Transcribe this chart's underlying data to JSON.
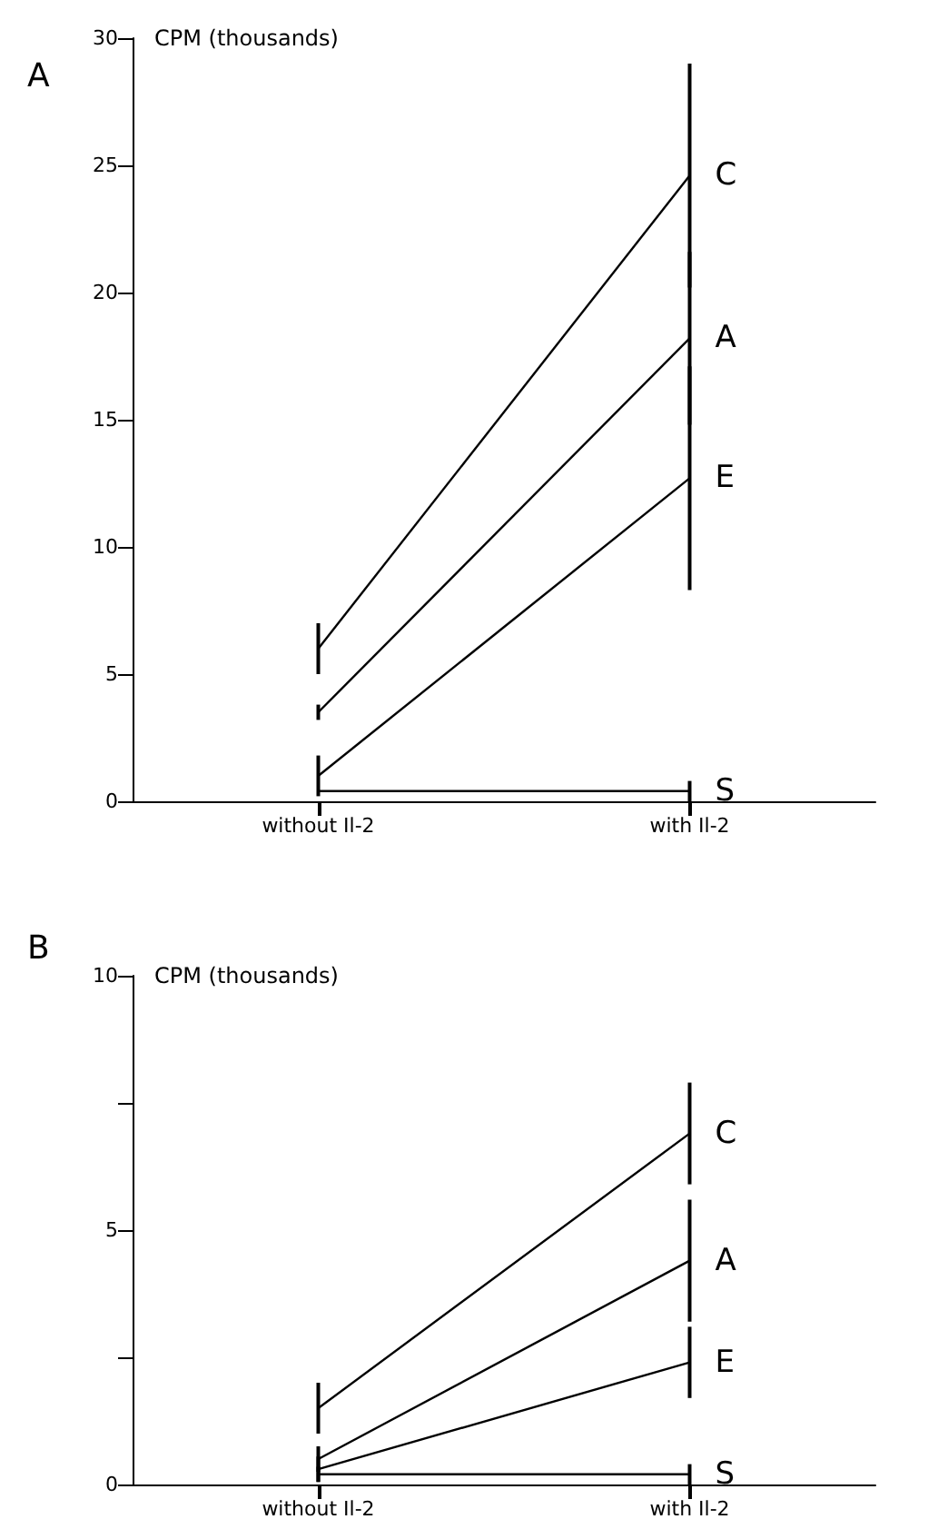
{
  "chart_data": [
    {
      "type": "line",
      "title": "A",
      "ylabel": "CPM (thousands)",
      "categories": [
        "without Il-2",
        "with Il-2"
      ],
      "ylim": [
        0,
        30
      ],
      "yticks": [
        0,
        5,
        10,
        15,
        20,
        25,
        30
      ],
      "marker": "none",
      "legend": "right",
      "grid": false,
      "series": [
        {
          "name": "C",
          "color": "#000000",
          "values": [
            6.0,
            24.6
          ],
          "errors": [
            1.0,
            4.4
          ]
        },
        {
          "name": "A",
          "color": "#000000",
          "values": [
            3.5,
            18.2
          ],
          "errors": [
            0.3,
            3.4
          ]
        },
        {
          "name": "E",
          "color": "#000000",
          "values": [
            1.0,
            12.7
          ],
          "errors": [
            0.8,
            4.4
          ]
        },
        {
          "name": "S",
          "color": "#000000",
          "values": [
            0.4,
            0.4
          ],
          "errors": [
            null,
            0.4
          ]
        }
      ]
    },
    {
      "type": "line",
      "title": "B",
      "ylabel": "CPM (thousands)",
      "categories": [
        "without Il-2",
        "with Il-2"
      ],
      "ylim": [
        0,
        10
      ],
      "yticks": [
        0,
        {
          "value": 2.5,
          "label": null
        },
        5,
        {
          "value": 7.5,
          "label": null
        },
        10
      ],
      "marker": "none",
      "legend": "right",
      "grid": false,
      "series": [
        {
          "name": "C",
          "color": "#000000",
          "values": [
            1.5,
            6.9
          ],
          "errors": [
            0.5,
            1.0
          ]
        },
        {
          "name": "A",
          "color": "#000000",
          "values": [
            0.5,
            4.4
          ],
          "errors": [
            0.25,
            1.2
          ]
        },
        {
          "name": "E",
          "color": "#000000",
          "values": [
            0.3,
            2.4
          ],
          "errors": [
            0.25,
            0.7
          ]
        },
        {
          "name": "S",
          "color": "#000000",
          "values": [
            0.2,
            0.2
          ],
          "errors": [
            0.15,
            0.2
          ]
        }
      ]
    }
  ]
}
